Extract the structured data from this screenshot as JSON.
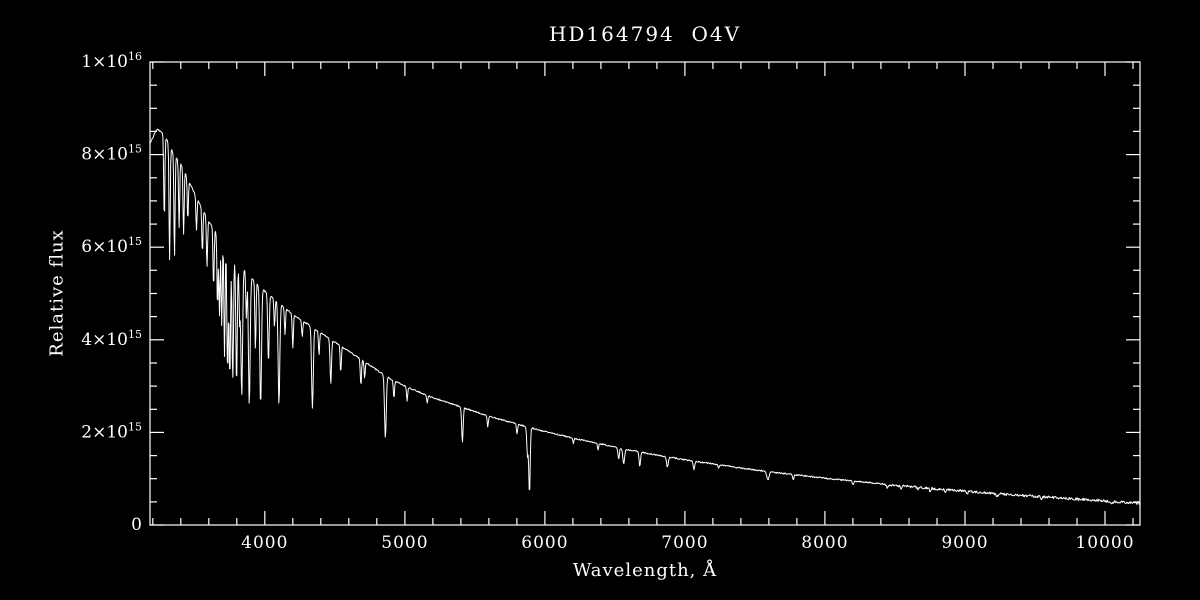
{
  "chart_data": {
    "type": "line",
    "title": "HD164794  O4V",
    "xlabel": "Wavelength, Å",
    "ylabel": "Relative flux",
    "xlim": [
      3180,
      10250
    ],
    "ylim": [
      0,
      1e+16
    ],
    "grid": false,
    "legend": "none",
    "background_color": "#000000",
    "axis_color": "#ffffff",
    "line_color": "#ffffff",
    "x_major_ticks": [
      4000,
      5000,
      6000,
      7000,
      8000,
      9000,
      10000
    ],
    "x_minor_step": 200,
    "y_major_ticks": [
      {
        "value": 0,
        "base": "0",
        "exp": ""
      },
      {
        "value": 2000000000000000.0,
        "base": "2×10",
        "exp": "15"
      },
      {
        "value": 4000000000000000.0,
        "base": "4×10",
        "exp": "15"
      },
      {
        "value": 6000000000000000.0,
        "base": "6×10",
        "exp": "15"
      },
      {
        "value": 8000000000000000.0,
        "base": "8×10",
        "exp": "15"
      },
      {
        "value": 1e+16,
        "base": "1×10",
        "exp": "16"
      }
    ],
    "y_minor_step": 500000000000000.0,
    "series": [
      {
        "name": "HD164794 O4V spectrum",
        "continuum": {
          "columns": [
            "wavelength_angstrom",
            "relative_flux"
          ],
          "rows": [
            [
              3180,
              8250000000000000.0
            ],
            [
              3230,
              8550000000000000.0
            ],
            [
              3280,
              8450000000000000.0
            ],
            [
              3350,
              8000000000000000.0
            ],
            [
              3400,
              7800000000000000.0
            ],
            [
              3500,
              7150000000000000.0
            ],
            [
              3600,
              6550000000000000.0
            ],
            [
              3700,
              6100000000000000.0
            ],
            [
              3800,
              5700000000000000.0
            ],
            [
              3900,
              5350000000000000.0
            ],
            [
              4000,
              5050000000000000.0
            ],
            [
              4100,
              4800000000000000.0
            ],
            [
              4200,
              4550000000000000.0
            ],
            [
              4300,
              4350000000000000.0
            ],
            [
              4400,
              4150000000000000.0
            ],
            [
              4500,
              3950000000000000.0
            ],
            [
              4600,
              3750000000000000.0
            ],
            [
              4700,
              3550000000000000.0
            ],
            [
              4800,
              3350000000000000.0
            ],
            [
              4900,
              3150000000000000.0
            ],
            [
              5000,
              3000000000000000.0
            ],
            [
              5200,
              2750000000000000.0
            ],
            [
              5400,
              2550000000000000.0
            ],
            [
              5600,
              2350000000000000.0
            ],
            [
              5800,
              2180000000000000.0
            ],
            [
              6000,
              2020000000000000.0
            ],
            [
              6200,
              1880000000000000.0
            ],
            [
              6400,
              1750000000000000.0
            ],
            [
              6600,
              1620000000000000.0
            ],
            [
              6800,
              1510000000000000.0
            ],
            [
              7000,
              1410000000000000.0
            ],
            [
              7200,
              1320000000000000.0
            ],
            [
              7400,
              1230000000000000.0
            ],
            [
              7600,
              1150000000000000.0
            ],
            [
              7800,
              1080000000000000.0
            ],
            [
              8000,
              1010000000000000.0
            ],
            [
              8200,
              950000000000000.0
            ],
            [
              8400,
              890000000000000.0
            ],
            [
              8600,
              830000000000000.0
            ],
            [
              8800,
              780000000000000.0
            ],
            [
              9000,
              730000000000000.0
            ],
            [
              9200,
              680000000000000.0
            ],
            [
              9400,
              640000000000000.0
            ],
            [
              9600,
              600000000000000.0
            ],
            [
              9800,
              560000000000000.0
            ],
            [
              10000,
              520000000000000.0
            ],
            [
              10250,
              470000000000000.0
            ]
          ]
        },
        "absorption_lines": {
          "columns": [
            "wavelength_angstrom",
            "depth_fraction",
            "sigma_angstrom"
          ],
          "rows": [
            [
              3282,
              0.22,
              4
            ],
            [
              3320,
              0.3,
              4
            ],
            [
              3355,
              0.28,
              4
            ],
            [
              3388,
              0.18,
              4
            ],
            [
              3420,
              0.18,
              4
            ],
            [
              3450,
              0.12,
              4
            ],
            [
              3512,
              0.1,
              4
            ],
            [
              3554,
              0.14,
              4
            ],
            [
              3587,
              0.16,
              4
            ],
            [
              3634,
              0.2,
              4
            ],
            [
              3662,
              0.25,
              4
            ],
            [
              3676,
              0.27,
              4
            ],
            [
              3692,
              0.3,
              4
            ],
            [
              3712,
              0.4,
              4
            ],
            [
              3734,
              0.44,
              5
            ],
            [
              3750,
              0.46,
              5
            ],
            [
              3771,
              0.46,
              5
            ],
            [
              3798,
              0.47,
              5
            ],
            [
              3820,
              0.22,
              4
            ],
            [
              3835,
              0.5,
              6
            ],
            [
              3868,
              0.18,
              4
            ],
            [
              3889,
              0.52,
              6
            ],
            [
              3933,
              0.28,
              4
            ],
            [
              3970,
              0.5,
              6
            ],
            [
              4026,
              0.3,
              5
            ],
            [
              4069,
              0.12,
              4
            ],
            [
              4101,
              0.46,
              6
            ],
            [
              4144,
              0.12,
              4
            ],
            [
              4200,
              0.16,
              4
            ],
            [
              4267,
              0.08,
              4
            ],
            [
              4340,
              0.41,
              6
            ],
            [
              4387,
              0.12,
              4
            ],
            [
              4471,
              0.24,
              5
            ],
            [
              4542,
              0.15,
              4
            ],
            [
              4686,
              0.16,
              4
            ],
            [
              4713,
              0.1,
              4
            ],
            [
              4861,
              0.42,
              6
            ],
            [
              4922,
              0.12,
              4
            ],
            [
              5016,
              0.1,
              4
            ],
            [
              5160,
              0.06,
              4
            ],
            [
              5411,
              0.3,
              5
            ],
            [
              5592,
              0.1,
              4
            ],
            [
              5801,
              0.1,
              4
            ],
            [
              5876,
              0.3,
              5
            ],
            [
              5890,
              0.68,
              5
            ],
            [
              6203,
              0.06,
              4
            ],
            [
              6380,
              0.08,
              4
            ],
            [
              6527,
              0.15,
              5
            ],
            [
              6563,
              0.2,
              6
            ],
            [
              6678,
              0.2,
              5
            ],
            [
              6875,
              0.15,
              6
            ],
            [
              7065,
              0.13,
              5
            ],
            [
              7240,
              0.06,
              4
            ],
            [
              7593,
              0.15,
              8
            ],
            [
              7774,
              0.1,
              5
            ],
            [
              8200,
              0.09,
              5
            ],
            [
              8446,
              0.08,
              5
            ],
            [
              8545,
              0.07,
              5
            ],
            [
              8665,
              0.07,
              5
            ],
            [
              8750,
              0.07,
              5
            ],
            [
              8862,
              0.07,
              5
            ],
            [
              9015,
              0.07,
              5
            ],
            [
              9229,
              0.09,
              6
            ],
            [
              9546,
              0.08,
              6
            ],
            [
              10049,
              0.09,
              7
            ]
          ]
        }
      }
    ]
  }
}
